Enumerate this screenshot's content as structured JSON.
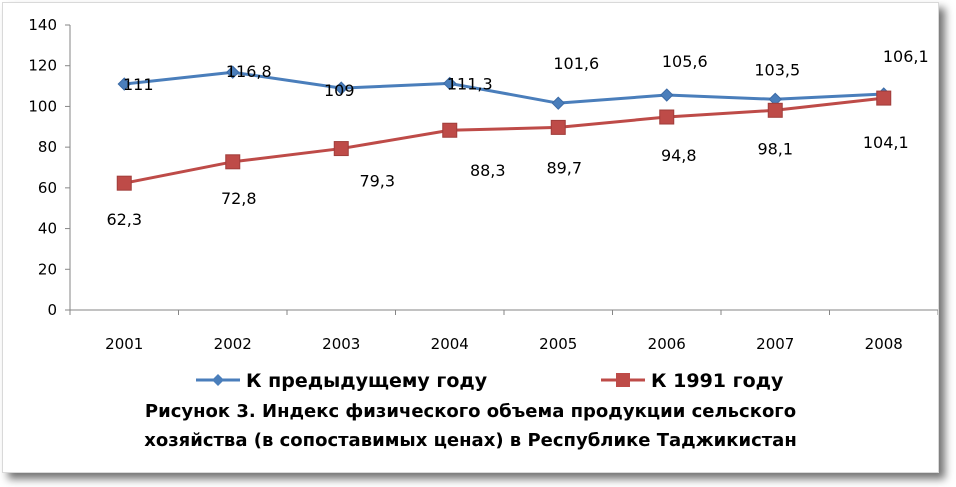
{
  "chart_data": {
    "type": "line",
    "categories": [
      "2001",
      "2002",
      "2003",
      "2004",
      "2005",
      "2006",
      "2007",
      "2008"
    ],
    "series": [
      {
        "name": "К предыдущему году",
        "values": [
          111,
          116.8,
          109,
          111.3,
          101.6,
          105.6,
          103.5,
          106.1
        ],
        "labels": [
          "111",
          "116,8",
          "109",
          "111,3",
          "101,6",
          "105,6",
          "103,5",
          "106,1"
        ],
        "color": "#4a7ebb",
        "marker": "diamond"
      },
      {
        "name": "К 1991 году",
        "values": [
          62.3,
          72.8,
          79.3,
          88.3,
          89.7,
          94.8,
          98.1,
          104.1
        ],
        "labels": [
          "62,3",
          "72,8",
          "79,3",
          "88,3",
          "89,7",
          "94,8",
          "98,1",
          "104,1"
        ],
        "color": "#be4b48",
        "marker": "square"
      }
    ],
    "ylim": [
      0,
      140
    ],
    "yticks": [
      0,
      20,
      40,
      60,
      80,
      100,
      120,
      140
    ],
    "grid": false,
    "legend": "bottom",
    "title": ""
  },
  "caption": {
    "line1": "Рисунок 3. Индекс физического объема продукции сельского",
    "line2": "хозяйства (в сопоставимых ценах) в Республике Таджикистан"
  }
}
